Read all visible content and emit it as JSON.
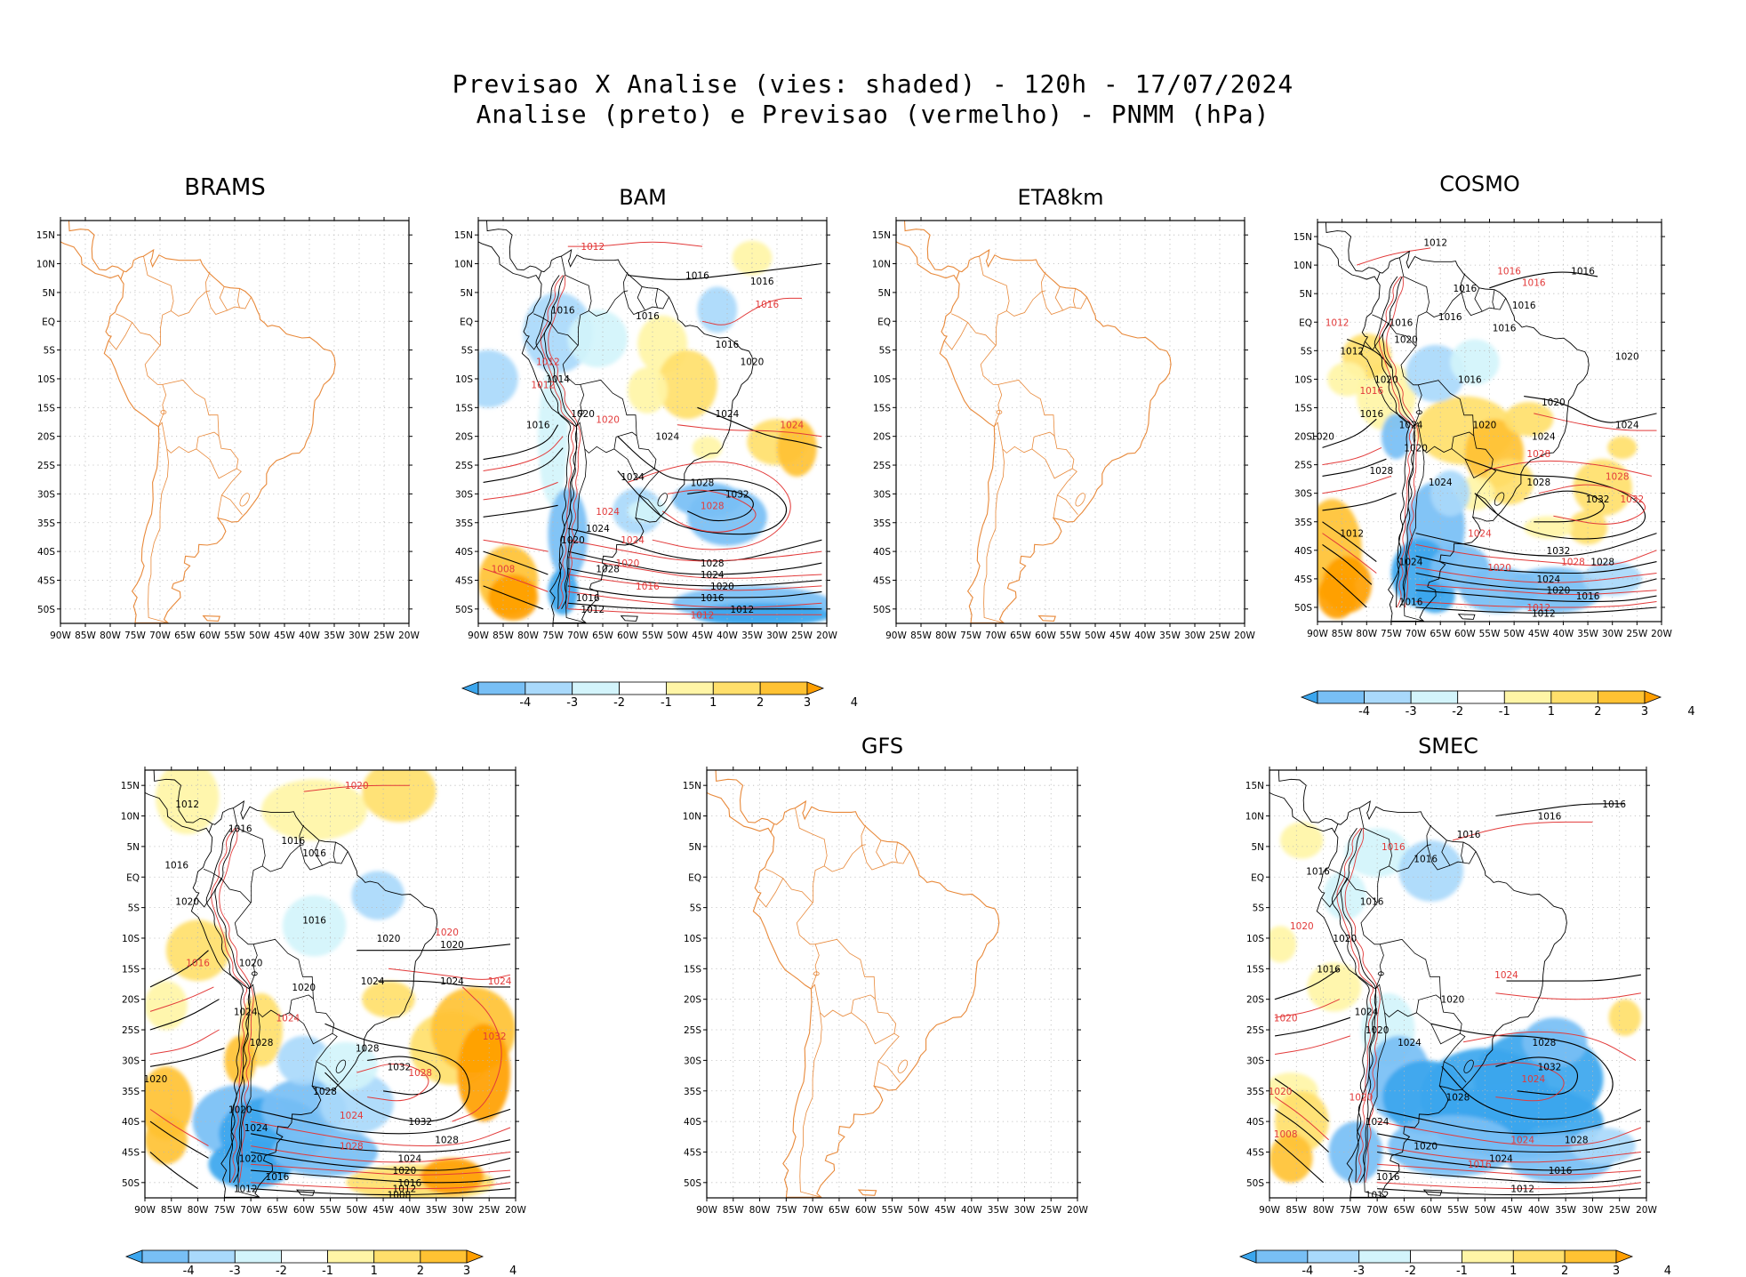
{
  "title": {
    "line1": "Previsao X Analise (vies: shaded) - 120h - 17/07/2024",
    "line2": "Analise (preto) e Previsao (vermelho) - PNMM (hPa)"
  },
  "axes": {
    "lat_labels": [
      "15N",
      "10N",
      "5N",
      "EQ",
      "5S",
      "10S",
      "15S",
      "20S",
      "25S",
      "30S",
      "35S",
      "40S",
      "45S",
      "50S"
    ],
    "lon_labels": [
      "90W",
      "85W",
      "80W",
      "75W",
      "70W",
      "65W",
      "60W",
      "55W",
      "50W",
      "45W",
      "40W",
      "35W",
      "30W",
      "25W",
      "20W"
    ]
  },
  "colorbar": {
    "labels": [
      "-4",
      "-3",
      "-2",
      "-1",
      "1",
      "2",
      "3",
      "4"
    ],
    "colors": [
      "#3ba6ee",
      "#78bff5",
      "#a9d9fb",
      "#d3f4fb",
      "#ffffff",
      "#fff5a6",
      "#ffdf6b",
      "#ffc233",
      "#ff9f00"
    ]
  },
  "colors": {
    "coast": "#e8893a",
    "analysis": "#000000",
    "forecast": "#e23a3a"
  },
  "panels": [
    {
      "key": "brams",
      "name": "BRAMS",
      "has_data": false,
      "isobar_labels": []
    },
    {
      "key": "bam",
      "name": "BAM",
      "has_data": true,
      "isobar_labels": [
        {
          "t": "1012",
          "c": "f",
          "lon": -67,
          "lat": 13
        },
        {
          "t": "1016",
          "c": "a",
          "lon": -46,
          "lat": 8
        },
        {
          "t": "1016",
          "c": "a",
          "lon": -33,
          "lat": 7
        },
        {
          "t": "1016",
          "c": "f",
          "lon": -32,
          "lat": 3
        },
        {
          "t": "1016",
          "c": "a",
          "lon": -73,
          "lat": 2
        },
        {
          "t": "1016",
          "c": "a",
          "lon": -56,
          "lat": 1
        },
        {
          "t": "1016",
          "c": "a",
          "lon": -40,
          "lat": -4
        },
        {
          "t": "1020",
          "c": "a",
          "lon": -35,
          "lat": -7
        },
        {
          "t": "1012",
          "c": "f",
          "lon": -76,
          "lat": -7
        },
        {
          "t": "1014",
          "c": "a",
          "lon": -74,
          "lat": -10
        },
        {
          "t": "1012",
          "c": "f",
          "lon": -77,
          "lat": -11
        },
        {
          "t": "1020",
          "c": "a",
          "lon": -69,
          "lat": -16
        },
        {
          "t": "1020",
          "c": "f",
          "lon": -64,
          "lat": -17
        },
        {
          "t": "1024",
          "c": "a",
          "lon": -40,
          "lat": -16
        },
        {
          "t": "1016",
          "c": "a",
          "lon": -78,
          "lat": -18
        },
        {
          "t": "1024",
          "c": "f",
          "lon": -27,
          "lat": -18
        },
        {
          "t": "1024",
          "c": "a",
          "lon": -52,
          "lat": -20
        },
        {
          "t": "1024",
          "c": "a",
          "lon": -59,
          "lat": -27
        },
        {
          "t": "1028",
          "c": "a",
          "lon": -45,
          "lat": -28
        },
        {
          "t": "1032",
          "c": "a",
          "lon": -38,
          "lat": -30
        },
        {
          "t": "1028",
          "c": "f",
          "lon": -43,
          "lat": -32
        },
        {
          "t": "1024",
          "c": "a",
          "lon": -66,
          "lat": -36
        },
        {
          "t": "1024",
          "c": "f",
          "lon": -64,
          "lat": -33
        },
        {
          "t": "1020",
          "c": "a",
          "lon": -71,
          "lat": -38
        },
        {
          "t": "1024",
          "c": "f",
          "lon": -59,
          "lat": -38
        },
        {
          "t": "1028",
          "c": "a",
          "lon": -43,
          "lat": -42
        },
        {
          "t": "1008",
          "c": "f",
          "lon": -85,
          "lat": -43
        },
        {
          "t": "1020",
          "c": "f",
          "lon": -60,
          "lat": -42
        },
        {
          "t": "1028",
          "c": "a",
          "lon": -64,
          "lat": -43
        },
        {
          "t": "1024",
          "c": "a",
          "lon": -43,
          "lat": -44
        },
        {
          "t": "1016",
          "c": "f",
          "lon": -56,
          "lat": -46
        },
        {
          "t": "1020",
          "c": "a",
          "lon": -41,
          "lat": -46
        },
        {
          "t": "1016",
          "c": "a",
          "lon": -43,
          "lat": -48
        },
        {
          "t": "1016",
          "c": "a",
          "lon": -68,
          "lat": -48
        },
        {
          "t": "1012",
          "c": "a",
          "lon": -37,
          "lat": -50
        },
        {
          "t": "1012",
          "c": "f",
          "lon": -45,
          "lat": -51
        },
        {
          "t": "1012",
          "c": "a",
          "lon": -67,
          "lat": -50
        }
      ]
    },
    {
      "key": "eta8km",
      "name": "ETA8km",
      "has_data": false,
      "isobar_labels": []
    },
    {
      "key": "cosmo",
      "name": "COSMO",
      "has_data": true,
      "isobar_labels": [
        {
          "t": "1012",
          "c": "a",
          "lon": -66,
          "lat": 14
        },
        {
          "t": "1016",
          "c": "f",
          "lon": -51,
          "lat": 9
        },
        {
          "t": "1016",
          "c": "a",
          "lon": -36,
          "lat": 9
        },
        {
          "t": "1016",
          "c": "f",
          "lon": -46,
          "lat": 7
        },
        {
          "t": "1016",
          "c": "a",
          "lon": -60,
          "lat": 6
        },
        {
          "t": "1016",
          "c": "a",
          "lon": -48,
          "lat": 3
        },
        {
          "t": "1016",
          "c": "a",
          "lon": -63,
          "lat": 1
        },
        {
          "t": "1016",
          "c": "a",
          "lon": -52,
          "lat": -1
        },
        {
          "t": "1012",
          "c": "f",
          "lon": -86,
          "lat": 0
        },
        {
          "t": "1016",
          "c": "a",
          "lon": -73,
          "lat": 0
        },
        {
          "t": "1020",
          "c": "a",
          "lon": -72,
          "lat": -3
        },
        {
          "t": "1012",
          "c": "a",
          "lon": -83,
          "lat": -5
        },
        {
          "t": "1020",
          "c": "a",
          "lon": -27,
          "lat": -6
        },
        {
          "t": "1020",
          "c": "a",
          "lon": -76,
          "lat": -10
        },
        {
          "t": "1016",
          "c": "a",
          "lon": -59,
          "lat": -10
        },
        {
          "t": "1016",
          "c": "f",
          "lon": -79,
          "lat": -12
        },
        {
          "t": "1020",
          "c": "a",
          "lon": -42,
          "lat": -14
        },
        {
          "t": "1016",
          "c": "a",
          "lon": -79,
          "lat": -16
        },
        {
          "t": "1020",
          "c": "a",
          "lon": -56,
          "lat": -18
        },
        {
          "t": "1024",
          "c": "a",
          "lon": -71,
          "lat": -18
        },
        {
          "t": "1024",
          "c": "a",
          "lon": -27,
          "lat": -18
        },
        {
          "t": "1024",
          "c": "a",
          "lon": -44,
          "lat": -20
        },
        {
          "t": "1020",
          "c": "a",
          "lon": -89,
          "lat": -20
        },
        {
          "t": "1020",
          "c": "a",
          "lon": -70,
          "lat": -22
        },
        {
          "t": "1028",
          "c": "f",
          "lon": -45,
          "lat": -23
        },
        {
          "t": "1028",
          "c": "a",
          "lon": -77,
          "lat": -26
        },
        {
          "t": "1024",
          "c": "a",
          "lon": -65,
          "lat": -28
        },
        {
          "t": "1028",
          "c": "a",
          "lon": -45,
          "lat": -28
        },
        {
          "t": "1028",
          "c": "f",
          "lon": -29,
          "lat": -27
        },
        {
          "t": "1032",
          "c": "a",
          "lon": -33,
          "lat": -31
        },
        {
          "t": "1032",
          "c": "f",
          "lon": -26,
          "lat": -31
        },
        {
          "t": "1012",
          "c": "a",
          "lon": -83,
          "lat": -37
        },
        {
          "t": "1024",
          "c": "f",
          "lon": -57,
          "lat": -37
        },
        {
          "t": "1032",
          "c": "a",
          "lon": -41,
          "lat": -40
        },
        {
          "t": "1028",
          "c": "f",
          "lon": -38,
          "lat": -42
        },
        {
          "t": "1028",
          "c": "a",
          "lon": -32,
          "lat": -42
        },
        {
          "t": "1024",
          "c": "a",
          "lon": -71,
          "lat": -42
        },
        {
          "t": "1020",
          "c": "f",
          "lon": -53,
          "lat": -43
        },
        {
          "t": "1024",
          "c": "a",
          "lon": -43,
          "lat": -45
        },
        {
          "t": "1020",
          "c": "a",
          "lon": -41,
          "lat": -47
        },
        {
          "t": "1016",
          "c": "a",
          "lon": -35,
          "lat": -48
        },
        {
          "t": "1016",
          "c": "a",
          "lon": -71,
          "lat": -49
        },
        {
          "t": "1012",
          "c": "f",
          "lon": -45,
          "lat": -50
        },
        {
          "t": "1012",
          "c": "a",
          "lon": -44,
          "lat": -51
        }
      ]
    },
    {
      "key": "panel5",
      "name": "",
      "has_data": true,
      "isobar_labels": [
        {
          "t": "1020",
          "c": "f",
          "lon": -50,
          "lat": 15
        },
        {
          "t": "1012",
          "c": "a",
          "lon": -82,
          "lat": 12
        },
        {
          "t": "1016",
          "c": "a",
          "lon": -72,
          "lat": 8
        },
        {
          "t": "1016",
          "c": "a",
          "lon": -62,
          "lat": 6
        },
        {
          "t": "1016",
          "c": "a",
          "lon": -58,
          "lat": 4
        },
        {
          "t": "1016",
          "c": "a",
          "lon": -84,
          "lat": 2
        },
        {
          "t": "1020",
          "c": "a",
          "lon": -82,
          "lat": -4
        },
        {
          "t": "1016",
          "c": "a",
          "lon": -58,
          "lat": -7
        },
        {
          "t": "1020",
          "c": "a",
          "lon": -44,
          "lat": -10
        },
        {
          "t": "1020",
          "c": "f",
          "lon": -33,
          "lat": -9
        },
        {
          "t": "1020",
          "c": "a",
          "lon": -32,
          "lat": -11
        },
        {
          "t": "1016",
          "c": "f",
          "lon": -80,
          "lat": -14
        },
        {
          "t": "1020",
          "c": "a",
          "lon": -70,
          "lat": -14
        },
        {
          "t": "1024",
          "c": "a",
          "lon": -47,
          "lat": -17
        },
        {
          "t": "1024",
          "c": "a",
          "lon": -32,
          "lat": -17
        },
        {
          "t": "1024",
          "c": "f",
          "lon": -23,
          "lat": -17
        },
        {
          "t": "1020",
          "c": "a",
          "lon": -60,
          "lat": -18
        },
        {
          "t": "1024",
          "c": "a",
          "lon": -71,
          "lat": -22
        },
        {
          "t": "1024",
          "c": "f",
          "lon": -63,
          "lat": -23
        },
        {
          "t": "1028",
          "c": "a",
          "lon": -68,
          "lat": -27
        },
        {
          "t": "1028",
          "c": "a",
          "lon": -48,
          "lat": -28
        },
        {
          "t": "1032",
          "c": "a",
          "lon": -42,
          "lat": -31
        },
        {
          "t": "1032",
          "c": "f",
          "lon": -24,
          "lat": -26
        },
        {
          "t": "1028",
          "c": "f",
          "lon": -38,
          "lat": -32
        },
        {
          "t": "1020",
          "c": "a",
          "lon": -88,
          "lat": -33
        },
        {
          "t": "1028",
          "c": "a",
          "lon": -56,
          "lat": -35
        },
        {
          "t": "1024",
          "c": "f",
          "lon": -51,
          "lat": -39
        },
        {
          "t": "1020",
          "c": "a",
          "lon": -72,
          "lat": -38
        },
        {
          "t": "1024",
          "c": "a",
          "lon": -69,
          "lat": -41
        },
        {
          "t": "1032",
          "c": "a",
          "lon": -38,
          "lat": -40
        },
        {
          "t": "1028",
          "c": "a",
          "lon": -33,
          "lat": -43
        },
        {
          "t": "1028",
          "c": "f",
          "lon": -51,
          "lat": -44
        },
        {
          "t": "1024",
          "c": "a",
          "lon": -40,
          "lat": -46
        },
        {
          "t": "1020",
          "c": "a",
          "lon": -70,
          "lat": -46
        },
        {
          "t": "1020",
          "c": "a",
          "lon": -41,
          "lat": -48
        },
        {
          "t": "1016",
          "c": "a",
          "lon": -65,
          "lat": -49
        },
        {
          "t": "1016",
          "c": "a",
          "lon": -40,
          "lat": -50
        },
        {
          "t": "1012",
          "c": "a",
          "lon": -41,
          "lat": -51
        },
        {
          "t": "1012",
          "c": "a",
          "lon": -71,
          "lat": -51
        },
        {
          "t": "1008",
          "c": "a",
          "lon": -42,
          "lat": -52
        }
      ]
    },
    {
      "key": "gfs",
      "name": "GFS",
      "has_data": false,
      "isobar_labels": []
    },
    {
      "key": "smec",
      "name": "SMEC",
      "has_data": true,
      "isobar_labels": [
        {
          "t": "1016",
          "c": "a",
          "lon": -26,
          "lat": 12
        },
        {
          "t": "1016",
          "c": "a",
          "lon": -38,
          "lat": 10
        },
        {
          "t": "1016",
          "c": "a",
          "lon": -53,
          "lat": 7
        },
        {
          "t": "1016",
          "c": "f",
          "lon": -67,
          "lat": 5
        },
        {
          "t": "1016",
          "c": "a",
          "lon": -61,
          "lat": 3
        },
        {
          "t": "1016",
          "c": "a",
          "lon": -81,
          "lat": 1
        },
        {
          "t": "1016",
          "c": "a",
          "lon": -71,
          "lat": -4
        },
        {
          "t": "1020",
          "c": "f",
          "lon": -84,
          "lat": -8
        },
        {
          "t": "1020",
          "c": "a",
          "lon": -76,
          "lat": -10
        },
        {
          "t": "1016",
          "c": "a",
          "lon": -79,
          "lat": -15
        },
        {
          "t": "1024",
          "c": "f",
          "lon": -46,
          "lat": -16
        },
        {
          "t": "1020",
          "c": "a",
          "lon": -56,
          "lat": -20
        },
        {
          "t": "1020",
          "c": "f",
          "lon": -87,
          "lat": -23
        },
        {
          "t": "1024",
          "c": "a",
          "lon": -72,
          "lat": -22
        },
        {
          "t": "1020",
          "c": "a",
          "lon": -70,
          "lat": -25
        },
        {
          "t": "1024",
          "c": "a",
          "lon": -64,
          "lat": -27
        },
        {
          "t": "1028",
          "c": "a",
          "lon": -39,
          "lat": -27
        },
        {
          "t": "1032",
          "c": "a",
          "lon": -38,
          "lat": -31
        },
        {
          "t": "1024",
          "c": "f",
          "lon": -41,
          "lat": -33
        },
        {
          "t": "1020",
          "c": "f",
          "lon": -73,
          "lat": -36
        },
        {
          "t": "1028",
          "c": "a",
          "lon": -55,
          "lat": -36
        },
        {
          "t": "1020",
          "c": "f",
          "lon": -88,
          "lat": -35
        },
        {
          "t": "1024",
          "c": "a",
          "lon": -70,
          "lat": -40
        },
        {
          "t": "1028",
          "c": "a",
          "lon": -33,
          "lat": -43
        },
        {
          "t": "1024",
          "c": "f",
          "lon": -43,
          "lat": -43
        },
        {
          "t": "1008",
          "c": "f",
          "lon": -87,
          "lat": -42
        },
        {
          "t": "1020",
          "c": "a",
          "lon": -61,
          "lat": -44
        },
        {
          "t": "1024",
          "c": "a",
          "lon": -47,
          "lat": -46
        },
        {
          "t": "1016",
          "c": "f",
          "lon": -51,
          "lat": -47
        },
        {
          "t": "1016",
          "c": "a",
          "lon": -36,
          "lat": -48
        },
        {
          "t": "1016",
          "c": "a",
          "lon": -68,
          "lat": -49
        },
        {
          "t": "1012",
          "c": "a",
          "lon": -43,
          "lat": -51
        },
        {
          "t": "1012",
          "c": "a",
          "lon": -70,
          "lat": -52
        }
      ]
    }
  ]
}
